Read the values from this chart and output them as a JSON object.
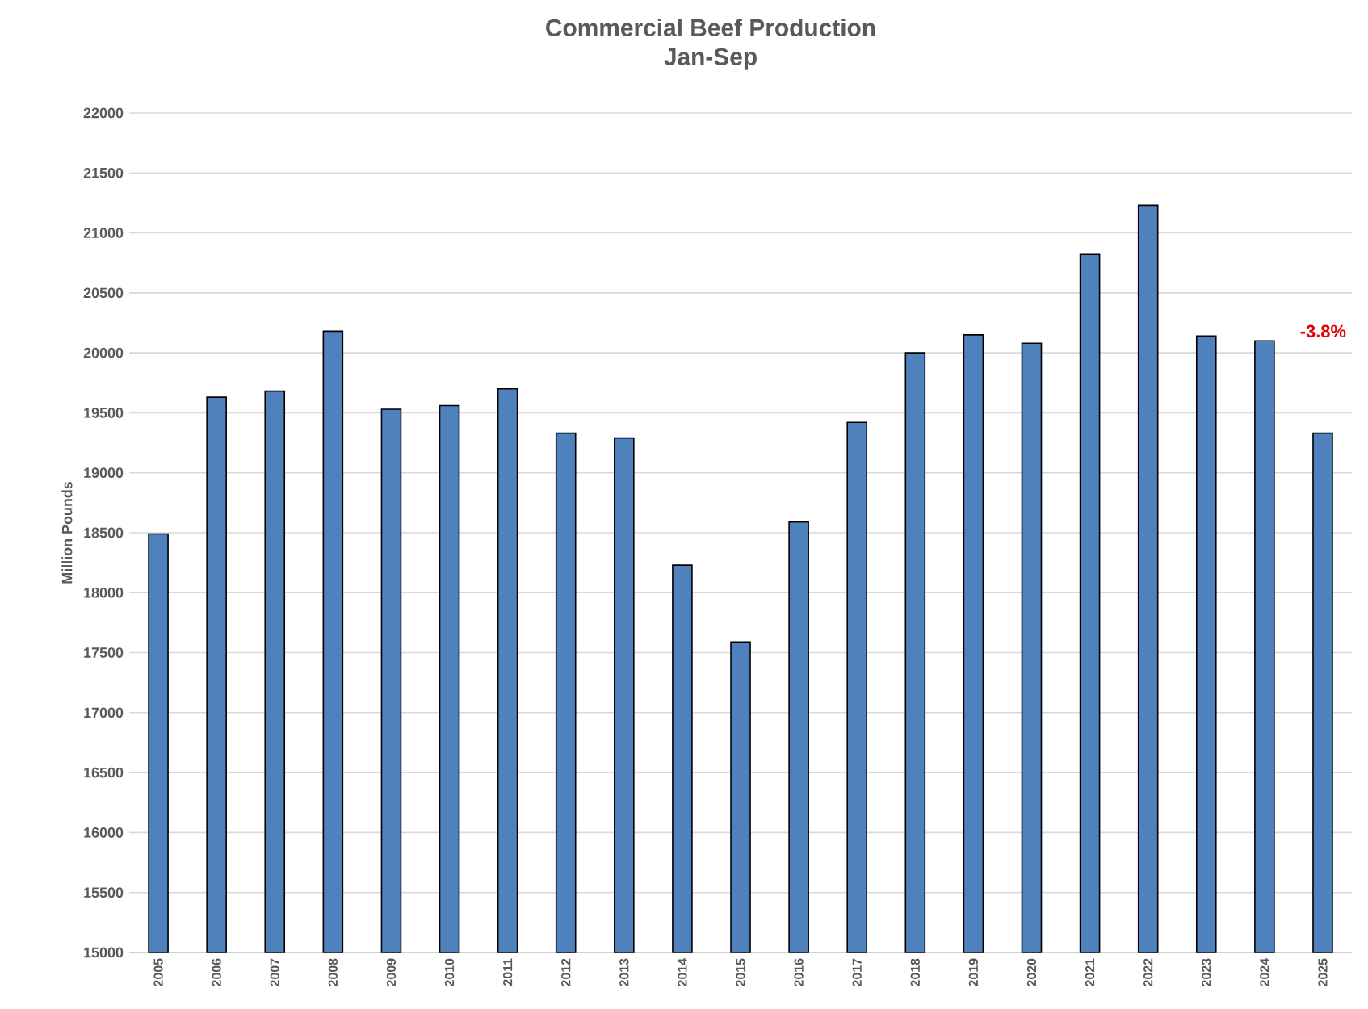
{
  "chart_data": {
    "type": "bar",
    "title": "Commercial Beef Production",
    "subtitle": "Jan-Sep",
    "ylabel": "Million Pounds",
    "categories": [
      "2005",
      "2006",
      "2007",
      "2008",
      "2009",
      "2010",
      "2011",
      "2012",
      "2013",
      "2014",
      "2015",
      "2016",
      "2017",
      "2018",
      "2019",
      "2020",
      "2021",
      "2022",
      "2023",
      "2024",
      "2025"
    ],
    "values": [
      18490,
      19630,
      19680,
      20180,
      19530,
      19560,
      19700,
      19330,
      19290,
      18230,
      17590,
      18590,
      19420,
      20000,
      20150,
      20080,
      20820,
      21230,
      20140,
      20100,
      19330
    ],
    "color": "#4f81bd",
    "ylim": [
      15000,
      22000
    ],
    "yticks": [
      15000,
      15500,
      16000,
      16500,
      17000,
      17500,
      18000,
      18500,
      19000,
      19500,
      20000,
      20500,
      21000,
      21500,
      22000
    ],
    "grid": "y",
    "annotations": [
      "-3.8%"
    ]
  }
}
